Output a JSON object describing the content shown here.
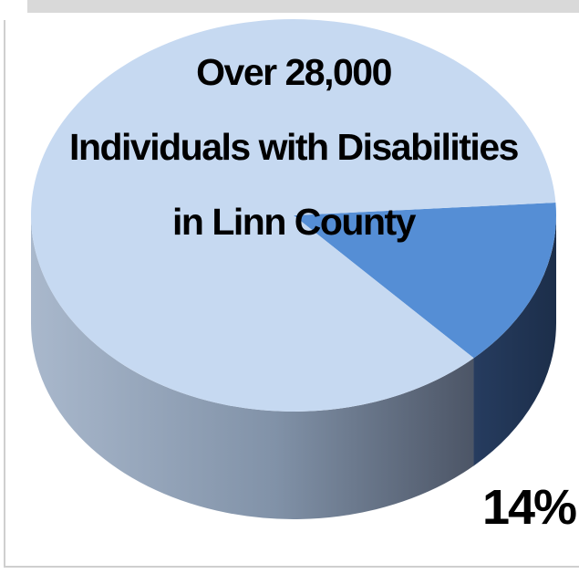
{
  "chart_data": {
    "type": "pie",
    "title_lines": [
      "Over 28,000",
      "Individuals with Disabilities",
      "in Linn County"
    ],
    "slices": [
      {
        "label": "",
        "value": 86,
        "color": "#c6d9f1",
        "side_color": "#8a9bb4"
      },
      {
        "label": "14%",
        "value": 14,
        "color": "#558ed5",
        "side_color": "#22385a"
      }
    ],
    "style": "3d"
  }
}
